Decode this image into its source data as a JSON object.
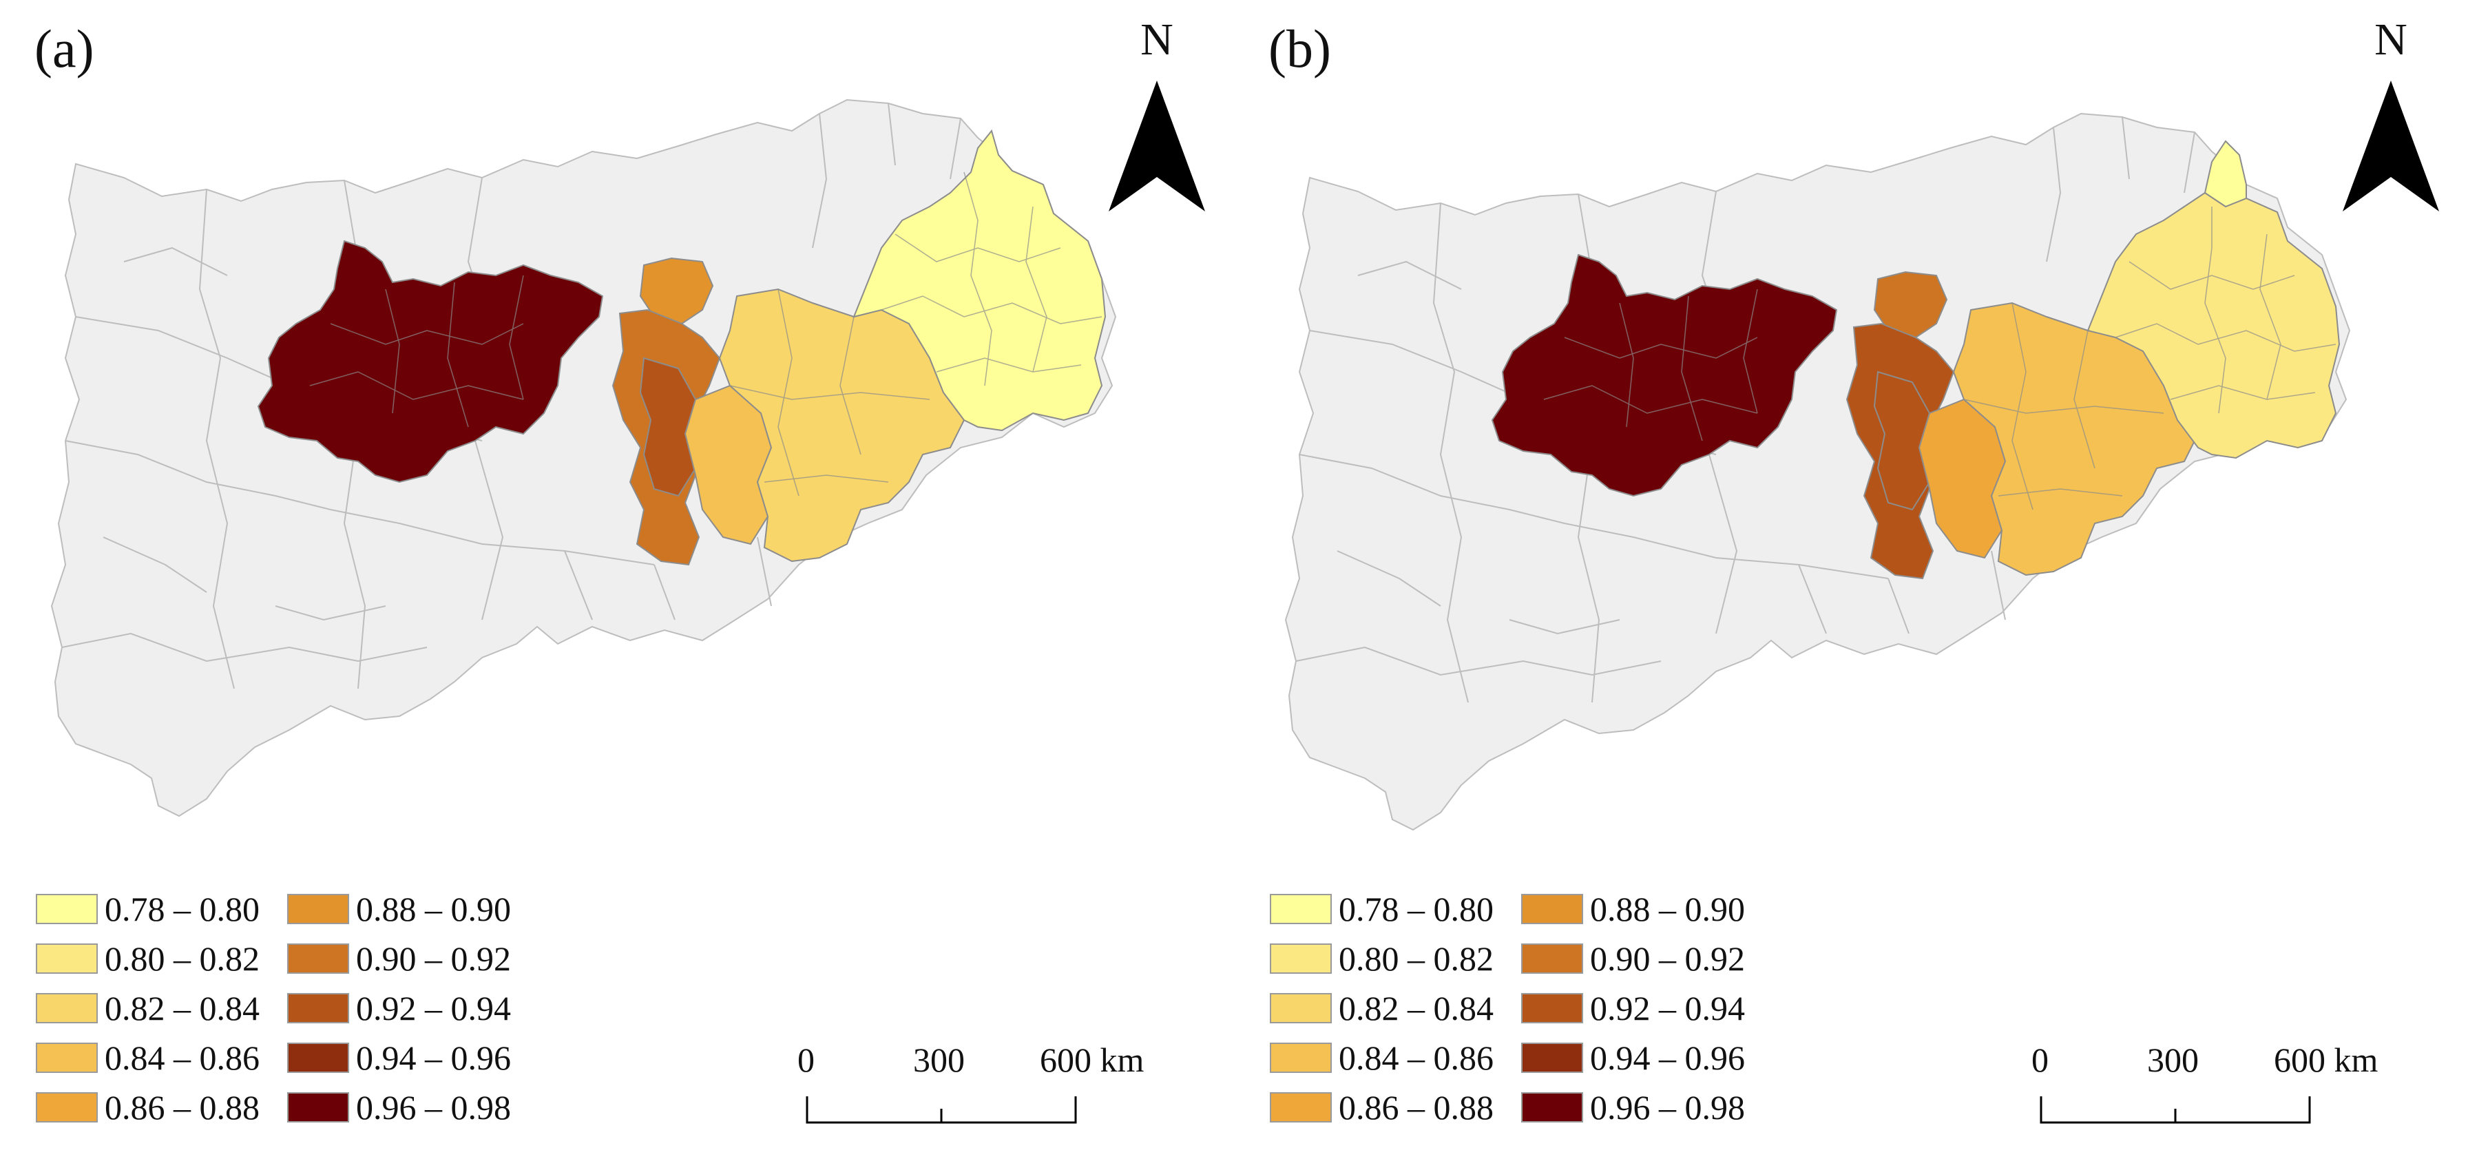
{
  "panels": [
    {
      "label": "(a)",
      "north": "N",
      "legend": [
        {
          "range": "0.78 – 0.80",
          "color": "#FFFF99"
        },
        {
          "range": "0.80 – 0.82",
          "color": "#FCE883"
        },
        {
          "range": "0.82 – 0.84",
          "color": "#F8D66A"
        },
        {
          "range": "0.84 – 0.86",
          "color": "#F5C152"
        },
        {
          "range": "0.86 – 0.88",
          "color": "#EFA73A"
        },
        {
          "range": "0.88 – 0.90",
          "color": "#E3932B"
        },
        {
          "range": "0.90 – 0.92",
          "color": "#CD7522"
        },
        {
          "range": "0.92 – 0.94",
          "color": "#B55418"
        },
        {
          "range": "0.94 – 0.96",
          "color": "#8F2D0F"
        },
        {
          "range": "0.96 – 0.98",
          "color": "#6B0006"
        }
      ],
      "scale": {
        "ticks": [
          "0",
          "300",
          "600 km"
        ]
      },
      "regions": {
        "west_range": "0.96 – 0.98",
        "middle_west_range": "0.90 – 0.92",
        "middle_core_range": "0.92 – 0.94",
        "middle_north_range": "0.88 – 0.90",
        "middle_south_range": "0.84 – 0.86",
        "central_east_range": "0.82 – 0.84",
        "east_range": "0.78 – 0.80"
      }
    },
    {
      "label": "(b)",
      "north": "N",
      "legend": [
        {
          "range": "0.78 – 0.80",
          "color": "#FFFF99"
        },
        {
          "range": "0.80 – 0.82",
          "color": "#FCE883"
        },
        {
          "range": "0.82 – 0.84",
          "color": "#F8D66A"
        },
        {
          "range": "0.84 – 0.86",
          "color": "#F5C152"
        },
        {
          "range": "0.86 – 0.88",
          "color": "#EFA73A"
        },
        {
          "range": "0.88 – 0.90",
          "color": "#E3932B"
        },
        {
          "range": "0.90 – 0.92",
          "color": "#CD7522"
        },
        {
          "range": "0.92 – 0.94",
          "color": "#B55418"
        },
        {
          "range": "0.94 – 0.96",
          "color": "#8F2D0F"
        },
        {
          "range": "0.96 – 0.98",
          "color": "#6B0006"
        }
      ],
      "scale": {
        "ticks": [
          "0",
          "300",
          "600 km"
        ]
      },
      "regions": {
        "west_range": "0.96 – 0.98",
        "middle_west_range": "0.92 – 0.94",
        "middle_core_range": "0.92 – 0.94",
        "middle_north_range": "0.90 – 0.92",
        "middle_south_range": "0.86 – 0.88",
        "central_east_range": "0.84 – 0.86",
        "east_range": "0.80 – 0.82",
        "northeast_tip_range": "0.78 – 0.80"
      }
    }
  ],
  "colors": {
    "no_data_fill": "#EFEFEF",
    "no_data_stroke": "#BDBDBD",
    "region_stroke": "#8C8C8C"
  }
}
